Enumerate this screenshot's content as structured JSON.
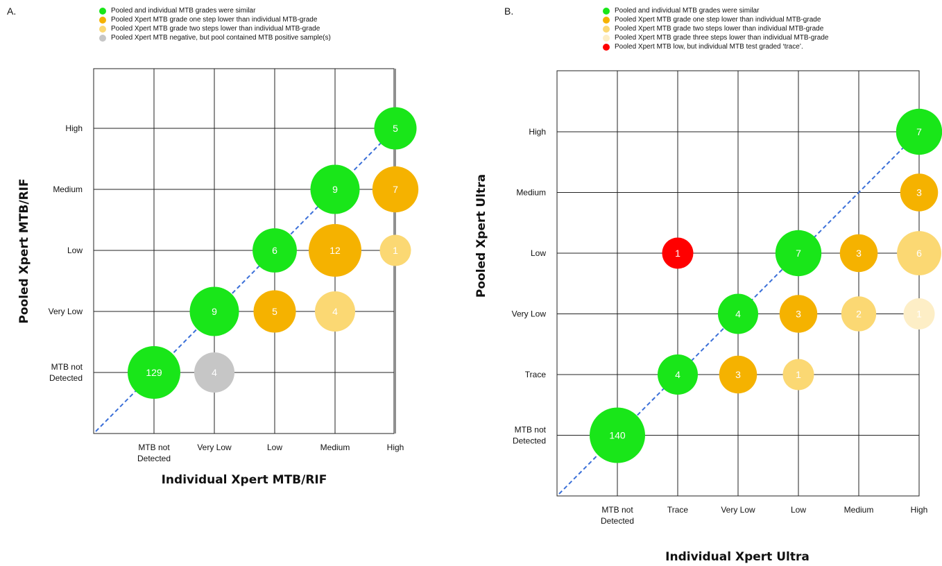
{
  "panel_a": {
    "label": "A.",
    "legend": [
      {
        "text": "Pooled and individual MTB grades were similar",
        "color": "#19e619"
      },
      {
        "text": "Pooled Xpert MTB grade one step lower than individual MTB-grade",
        "color": "#f5b200"
      },
      {
        "text": "Pooled Xpert MTB grade two steps lower than individual MTB-grade",
        "color": "#fbd873"
      },
      {
        "text": "Pooled Xpert MTB negative, but pool contained MTB positive sample(s)",
        "color": "#c6c6c6"
      }
    ],
    "chart_data": {
      "type": "scatter",
      "xlabel": "Individual Xpert MTB/RIF",
      "ylabel": "Pooled Xpert MTB/RIF",
      "x_categories": [
        "MTB not Detected",
        "Very Low",
        "Low",
        "Medium",
        "High"
      ],
      "y_categories": [
        "MTB not Detected",
        "Very Low",
        "Low",
        "Medium",
        "High"
      ],
      "grid": true,
      "points": [
        {
          "x": "MTB not Detected",
          "y": "MTB not Detected",
          "value": 129,
          "color": "#19e619"
        },
        {
          "x": "Very Low",
          "y": "MTB not Detected",
          "value": 4,
          "color": "#c6c6c6"
        },
        {
          "x": "Very Low",
          "y": "Very Low",
          "value": 9,
          "color": "#19e619"
        },
        {
          "x": "Low",
          "y": "Very Low",
          "value": 5,
          "color": "#f5b200"
        },
        {
          "x": "Medium",
          "y": "Very Low",
          "value": 4,
          "color": "#fbd873"
        },
        {
          "x": "Low",
          "y": "Low",
          "value": 6,
          "color": "#19e619"
        },
        {
          "x": "Medium",
          "y": "Low",
          "value": 12,
          "color": "#f5b200"
        },
        {
          "x": "High",
          "y": "Low",
          "value": 1,
          "color": "#fbd873"
        },
        {
          "x": "Medium",
          "y": "Medium",
          "value": 9,
          "color": "#19e619"
        },
        {
          "x": "High",
          "y": "Medium",
          "value": 7,
          "color": "#f5b200"
        },
        {
          "x": "High",
          "y": "High",
          "value": 5,
          "color": "#19e619"
        }
      ]
    }
  },
  "panel_b": {
    "label": "B.",
    "legend": [
      {
        "text": "Pooled and individual MTB grades were similar",
        "color": "#19e619"
      },
      {
        "text": "Pooled Xpert MTB grade one step lower than individual MTB-grade",
        "color": "#f5b200"
      },
      {
        "text": "Pooled Xpert MTB grade two steps lower than individual MTB-grade",
        "color": "#fbd873"
      },
      {
        "text": "Pooled Xpert MTB grade three steps lower than individual MTB-grade",
        "color": "#fdeec6"
      },
      {
        "text": "Pooled Xpert MTB low, but individual MTB test graded ‘trace’.",
        "color": "#ff0000"
      }
    ],
    "chart_data": {
      "type": "scatter",
      "xlabel": "Individual Xpert Ultra",
      "ylabel": "Pooled Xpert Ultra",
      "x_categories": [
        "MTB not Detected",
        "Trace",
        "Very Low",
        "Low",
        "Medium",
        "High"
      ],
      "y_categories": [
        "MTB not Detected",
        "Trace",
        "Very Low",
        "Low",
        "Medium",
        "High"
      ],
      "grid": true,
      "points": [
        {
          "x": "MTB not Detected",
          "y": "MTB not Detected",
          "value": 140,
          "color": "#19e619"
        },
        {
          "x": "Trace",
          "y": "Trace",
          "value": 4,
          "color": "#19e619"
        },
        {
          "x": "Very Low",
          "y": "Trace",
          "value": 3,
          "color": "#f5b200"
        },
        {
          "x": "Low",
          "y": "Trace",
          "value": 1,
          "color": "#fbd873"
        },
        {
          "x": "Very Low",
          "y": "Very Low",
          "value": 4,
          "color": "#19e619"
        },
        {
          "x": "Low",
          "y": "Very Low",
          "value": 3,
          "color": "#f5b200"
        },
        {
          "x": "Medium",
          "y": "Very Low",
          "value": 2,
          "color": "#fbd873"
        },
        {
          "x": "High",
          "y": "Very Low",
          "value": 1,
          "color": "#fdeec6"
        },
        {
          "x": "Trace",
          "y": "Low",
          "value": 1,
          "color": "#ff0000"
        },
        {
          "x": "Low",
          "y": "Low",
          "value": 7,
          "color": "#19e619"
        },
        {
          "x": "Medium",
          "y": "Low",
          "value": 3,
          "color": "#f5b200"
        },
        {
          "x": "High",
          "y": "Low",
          "value": 6,
          "color": "#fbd873"
        },
        {
          "x": "High",
          "y": "Medium",
          "value": 3,
          "color": "#f5b200"
        },
        {
          "x": "High",
          "y": "High",
          "value": 7,
          "color": "#19e619"
        }
      ]
    }
  }
}
